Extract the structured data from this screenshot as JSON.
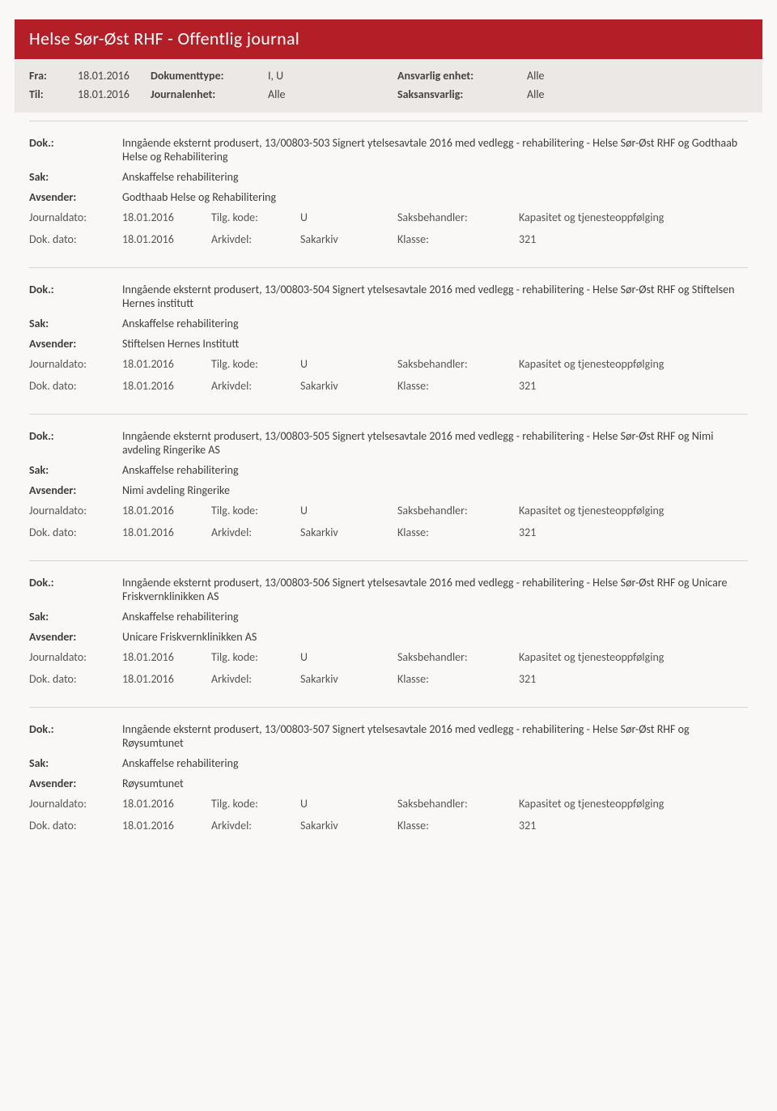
{
  "title": "Helse Sør-Øst RHF - Offentlig journal",
  "filter": {
    "fra_label": "Fra:",
    "fra_value": "18.01.2016",
    "til_label": "Til:",
    "til_value": "18.01.2016",
    "doktype_label": "Dokumenttype:",
    "doktype_value": "I, U",
    "journalenhet_label": "Journalenhet:",
    "journalenhet_value": "Alle",
    "ansvarlig_label": "Ansvarlig enhet:",
    "ansvarlig_value": "Alle",
    "saksansvarlig_label": "Saksansvarlig:",
    "saksansvarlig_value": "Alle"
  },
  "labels": {
    "dok": "Dok.:",
    "sak": "Sak:",
    "avsender": "Avsender:",
    "journaldato": "Journaldato:",
    "dokdato": "Dok. dato:",
    "tilgkode": "Tilg. kode:",
    "arkivdel": "Arkivdel:",
    "saksbehandler": "Saksbehandler:",
    "klasse": "Klasse:"
  },
  "entries": [
    {
      "dok": "Inngående eksternt produsert, 13/00803-503 Signert ytelsesavtale 2016 med vedlegg - rehabilitering - Helse Sør-Øst RHF og Godthaab Helse og Rehabilitering",
      "sak": "Anskaffelse rehabilitering",
      "avsender": "Godthaab Helse og Rehabilitering",
      "journaldato": "18.01.2016",
      "tilgkode": "U",
      "saksbehandler": "Kapasitet og tjenesteoppfølging",
      "dokdato": "18.01.2016",
      "arkivdel": "Sakarkiv",
      "klasse": "321"
    },
    {
      "dok": "Inngående eksternt produsert, 13/00803-504 Signert ytelsesavtale 2016 med vedlegg - rehabilitering - Helse Sør-Øst RHF og Stiftelsen Hernes institutt",
      "sak": "Anskaffelse rehabilitering",
      "avsender": "Stiftelsen Hernes Institutt",
      "journaldato": "18.01.2016",
      "tilgkode": "U",
      "saksbehandler": "Kapasitet og tjenesteoppfølging",
      "dokdato": "18.01.2016",
      "arkivdel": "Sakarkiv",
      "klasse": "321"
    },
    {
      "dok": "Inngående eksternt produsert, 13/00803-505 Signert ytelsesavtale 2016 med vedlegg - rehabilitering - Helse Sør-Øst RHF og Nimi avdeling Ringerike AS",
      "sak": "Anskaffelse rehabilitering",
      "avsender": "Nimi avdeling Ringerike",
      "journaldato": "18.01.2016",
      "tilgkode": "U",
      "saksbehandler": "Kapasitet og tjenesteoppfølging",
      "dokdato": "18.01.2016",
      "arkivdel": "Sakarkiv",
      "klasse": "321"
    },
    {
      "dok": "Inngående eksternt produsert, 13/00803-506 Signert ytelsesavtale 2016 med vedlegg - rehabilitering - Helse Sør-Øst RHF og Unicare Friskvernklinikken AS",
      "sak": "Anskaffelse rehabilitering",
      "avsender": "Unicare Friskvernklinikken AS",
      "journaldato": "18.01.2016",
      "tilgkode": "U",
      "saksbehandler": "Kapasitet og tjenesteoppfølging",
      "dokdato": "18.01.2016",
      "arkivdel": "Sakarkiv",
      "klasse": "321"
    },
    {
      "dok": "Inngående eksternt produsert, 13/00803-507 Signert ytelsesavtale 2016 med vedlegg - rehabilitering - Helse Sør-Øst RHF og Røysumtunet",
      "sak": "Anskaffelse rehabilitering",
      "avsender": "Røysumtunet",
      "journaldato": "18.01.2016",
      "tilgkode": "U",
      "saksbehandler": "Kapasitet og tjenesteoppfølging",
      "dokdato": "18.01.2016",
      "arkivdel": "Sakarkiv",
      "klasse": "321"
    }
  ]
}
